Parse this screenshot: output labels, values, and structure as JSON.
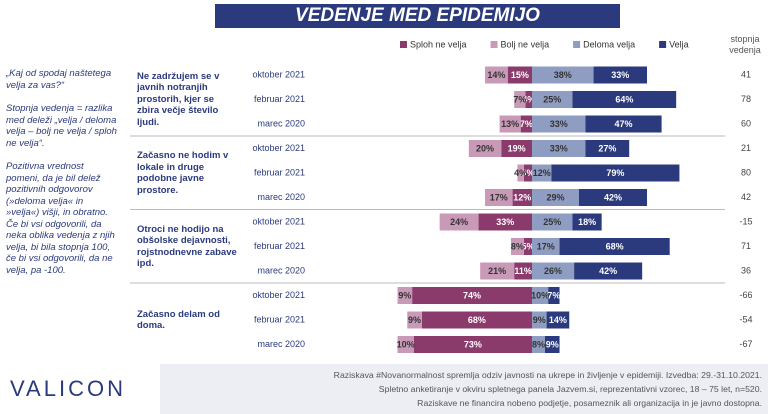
{
  "chart_data": {
    "type": "diverging_bar",
    "title": "VEDENJE MED EPIDEMIJO",
    "notes": [
      "„Kaj od spodaj naštetega velja za vas?“",
      "Stopnja vedenja = razlika med deleži „velja / deloma velja – bolj ne velja / sploh ne velja“.",
      "Pozitivna vrednost pomeni, da je bil delež pozitivnih odgovorov (»deloma velja« in »velja«) višji, in obratno. Če bi vsi odgovorili, da neka oblika vedenja z njih velja, bi bila stopnja 100, če bi vsi odgovorili, da ne velja, pa -100."
    ],
    "groups": [
      "Ne zadržujem se v javnih notranjih prostorih, kjer se zbira večje število ljudi.",
      "Začasno ne hodim v lokale in druge podobne javne prostore.",
      "Otroci ne hodijo na obšolske dejavnosti, rojstnodnevne zabave ipd.",
      "Začasno delam od doma."
    ],
    "categories": [
      "oktober 2021",
      "februar 2021",
      "marec 2020",
      "oktober 2021",
      "februar 2021",
      "marec 2020",
      "oktober 2021",
      "februar 2021",
      "marec 2020",
      "oktober 2021",
      "februar 2021",
      "marec 2020"
    ],
    "series": [
      {
        "name": "Sploh ne velja",
        "color": "#8a3b6c",
        "side": "negative",
        "values": [
          15,
          4,
          7,
          19,
          5,
          12,
          33,
          5,
          11,
          74,
          68,
          73
        ],
        "value_labels": [
          "15%",
          "4%",
          "7%",
          "19%",
          "5%",
          "12%",
          "33%",
          "5%",
          "11%",
          "74%",
          "68%",
          "73%"
        ]
      },
      {
        "name": "Bolj ne velja",
        "color": "#c99ab8",
        "side": "negative",
        "values": [
          14,
          7,
          13,
          20,
          4,
          17,
          24,
          8,
          21,
          9,
          9,
          10
        ],
        "value_labels": [
          "14%",
          "7%",
          "13%",
          "20%",
          "4%",
          "17%",
          "24%",
          "8%",
          "21%",
          "9%",
          "9%",
          "10%"
        ]
      },
      {
        "name": "Deloma velja",
        "color": "#8f9dc2",
        "side": "positive",
        "values": [
          38,
          25,
          33,
          33,
          12,
          29,
          25,
          17,
          26,
          10,
          9,
          8
        ],
        "value_labels": [
          "38%",
          "25%",
          "33%",
          "33%",
          "12%",
          "29%",
          "25%",
          "17%",
          "26%",
          "10%",
          "9%",
          "8%"
        ]
      },
      {
        "name": "Velja",
        "color": "#2b3a7c",
        "side": "positive",
        "values": [
          33,
          64,
          47,
          27,
          79,
          42,
          18,
          68,
          42,
          7,
          14,
          9
        ],
        "value_labels": [
          "33%",
          "64%",
          "47%",
          "27%",
          "79%",
          "42%",
          "18%",
          "68%",
          "42%",
          "7%",
          "14%",
          "9%"
        ]
      }
    ],
    "index_label": "stopnja vedenja",
    "index_values": [
      41,
      78,
      60,
      21,
      80,
      42,
      -15,
      71,
      36,
      -66,
      -54,
      -67
    ],
    "logo": "VALICON",
    "footer": [
      "Raziskava #Novanormalnost spremlja odziv javnosti na ukrepe in življenje v epidemiji. Izvedba: 29.-31.10.2021.",
      "Spletno anketiranje v okviru spletnega panela Jazvem.si, reprezentativni vzorec, 18 – 75 let, n=520.",
      "Raziskave ne financira nobeno podjetje, posameznik ali organizacija in je javno dostopna."
    ]
  }
}
